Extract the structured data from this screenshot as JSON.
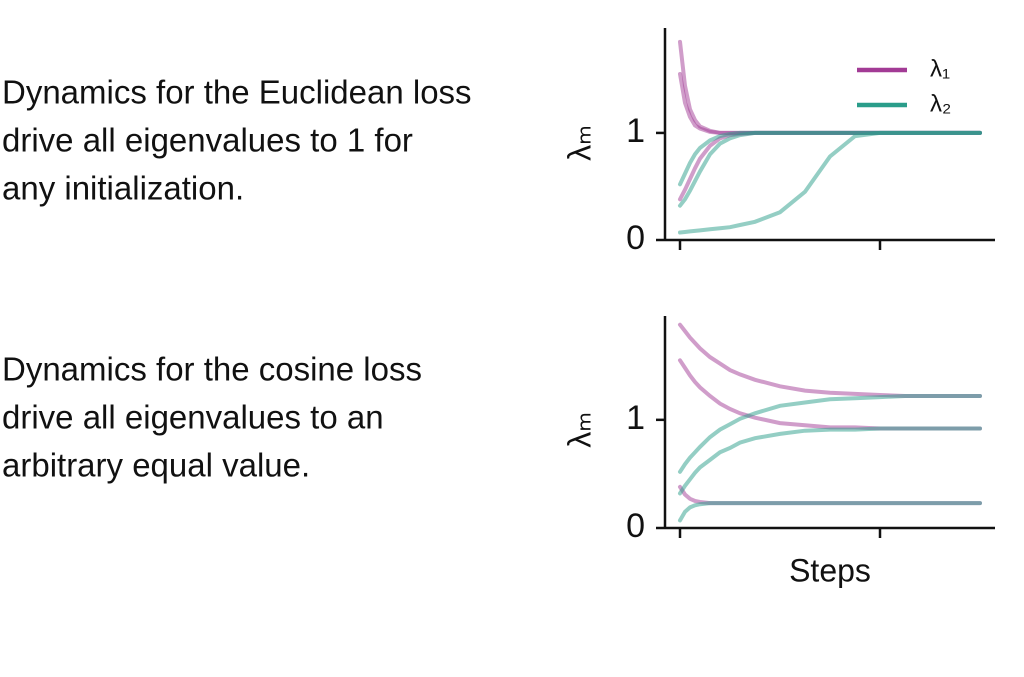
{
  "chart_data": [
    {
      "type": "line",
      "annotation": [
        "Dynamics for the Euclidean loss",
        "drive all eigenvalues to 1 for",
        "any initialization."
      ],
      "y_label": "λₘ",
      "x": [
        0,
        1,
        2,
        3,
        4,
        6,
        8,
        10,
        12,
        15,
        20,
        25,
        30,
        35,
        40,
        45,
        50,
        55,
        60
      ],
      "xlim": [
        -3,
        63
      ],
      "xticks": [
        0,
        40
      ],
      "ylim": [
        0,
        1.98
      ],
      "yticks": [
        0,
        1
      ],
      "legend": "upper right",
      "series": [
        {
          "name": "λ₁",
          "color": "#a23b95",
          "values": [
            [
              1.85,
              1.44,
              1.22,
              1.12,
              1.06,
              1.02,
              1.0,
              1,
              1,
              1,
              1,
              1,
              1,
              1,
              1,
              1,
              1,
              1,
              1
            ],
            [
              1.55,
              1.28,
              1.15,
              1.07,
              1.04,
              1.01,
              1.0,
              1,
              1,
              1,
              1,
              1,
              1,
              1,
              1,
              1,
              1,
              1,
              1
            ],
            [
              0.38,
              0.47,
              0.57,
              0.67,
              0.76,
              0.88,
              0.95,
              0.98,
              0.99,
              1,
              1,
              1,
              1,
              1,
              1,
              1,
              1,
              1,
              1
            ]
          ]
        },
        {
          "name": "λ₂",
          "color": "#2a9d8a",
          "values": [
            [
              0.52,
              0.62,
              0.72,
              0.8,
              0.86,
              0.93,
              0.97,
              0.99,
              1,
              1,
              1,
              1,
              1,
              1,
              1,
              1,
              1,
              1,
              1
            ],
            [
              0.32,
              0.38,
              0.46,
              0.55,
              0.64,
              0.8,
              0.9,
              0.95,
              0.98,
              1,
              1,
              1,
              1,
              1,
              1,
              1,
              1,
              1,
              1
            ],
            [
              0.07,
              0.075,
              0.08,
              0.085,
              0.09,
              0.1,
              0.11,
              0.12,
              0.14,
              0.17,
              0.26,
              0.45,
              0.78,
              0.97,
              1,
              1,
              1,
              1,
              1
            ]
          ]
        }
      ]
    },
    {
      "type": "line",
      "annotation": [
        "Dynamics for the cosine loss",
        "drive all eigenvalues to an",
        "arbitrary equal value."
      ],
      "y_label": "λₘ",
      "x_label": "Steps",
      "x": [
        0,
        1,
        2,
        3,
        4,
        6,
        8,
        10,
        12,
        15,
        20,
        25,
        30,
        35,
        40,
        45,
        50,
        55,
        60
      ],
      "xlim": [
        -3,
        63
      ],
      "xticks": [
        0,
        40
      ],
      "ylim": [
        0,
        1.96
      ],
      "yticks": [
        0,
        1
      ],
      "series": [
        {
          "name": "λ₁",
          "color": "#a23b95",
          "values": [
            [
              1.88,
              1.82,
              1.76,
              1.71,
              1.66,
              1.58,
              1.52,
              1.46,
              1.42,
              1.37,
              1.31,
              1.27,
              1.25,
              1.24,
              1.23,
              1.22,
              1.22,
              1.22,
              1.22
            ],
            [
              1.55,
              1.48,
              1.41,
              1.35,
              1.3,
              1.22,
              1.15,
              1.1,
              1.06,
              1.02,
              0.97,
              0.95,
              0.93,
              0.93,
              0.92,
              0.92,
              0.92,
              0.92,
              0.92
            ],
            [
              0.38,
              0.31,
              0.27,
              0.25,
              0.24,
              0.23,
              0.23,
              0.23,
              0.23,
              0.23,
              0.23,
              0.23,
              0.23,
              0.23,
              0.23,
              0.23,
              0.23,
              0.23,
              0.23
            ]
          ]
        },
        {
          "name": "λ₂",
          "color": "#2a9d8a",
          "values": [
            [
              0.52,
              0.59,
              0.65,
              0.7,
              0.75,
              0.84,
              0.91,
              0.96,
              1.01,
              1.06,
              1.13,
              1.16,
              1.19,
              1.2,
              1.21,
              1.22,
              1.22,
              1.22,
              1.22
            ],
            [
              0.32,
              0.39,
              0.45,
              0.51,
              0.56,
              0.63,
              0.7,
              0.74,
              0.79,
              0.83,
              0.87,
              0.9,
              0.91,
              0.91,
              0.92,
              0.92,
              0.92,
              0.92,
              0.92
            ],
            [
              0.07,
              0.15,
              0.19,
              0.21,
              0.22,
              0.23,
              0.23,
              0.23,
              0.23,
              0.23,
              0.23,
              0.23,
              0.23,
              0.23,
              0.23,
              0.23,
              0.23,
              0.23,
              0.23
            ]
          ]
        }
      ]
    }
  ]
}
